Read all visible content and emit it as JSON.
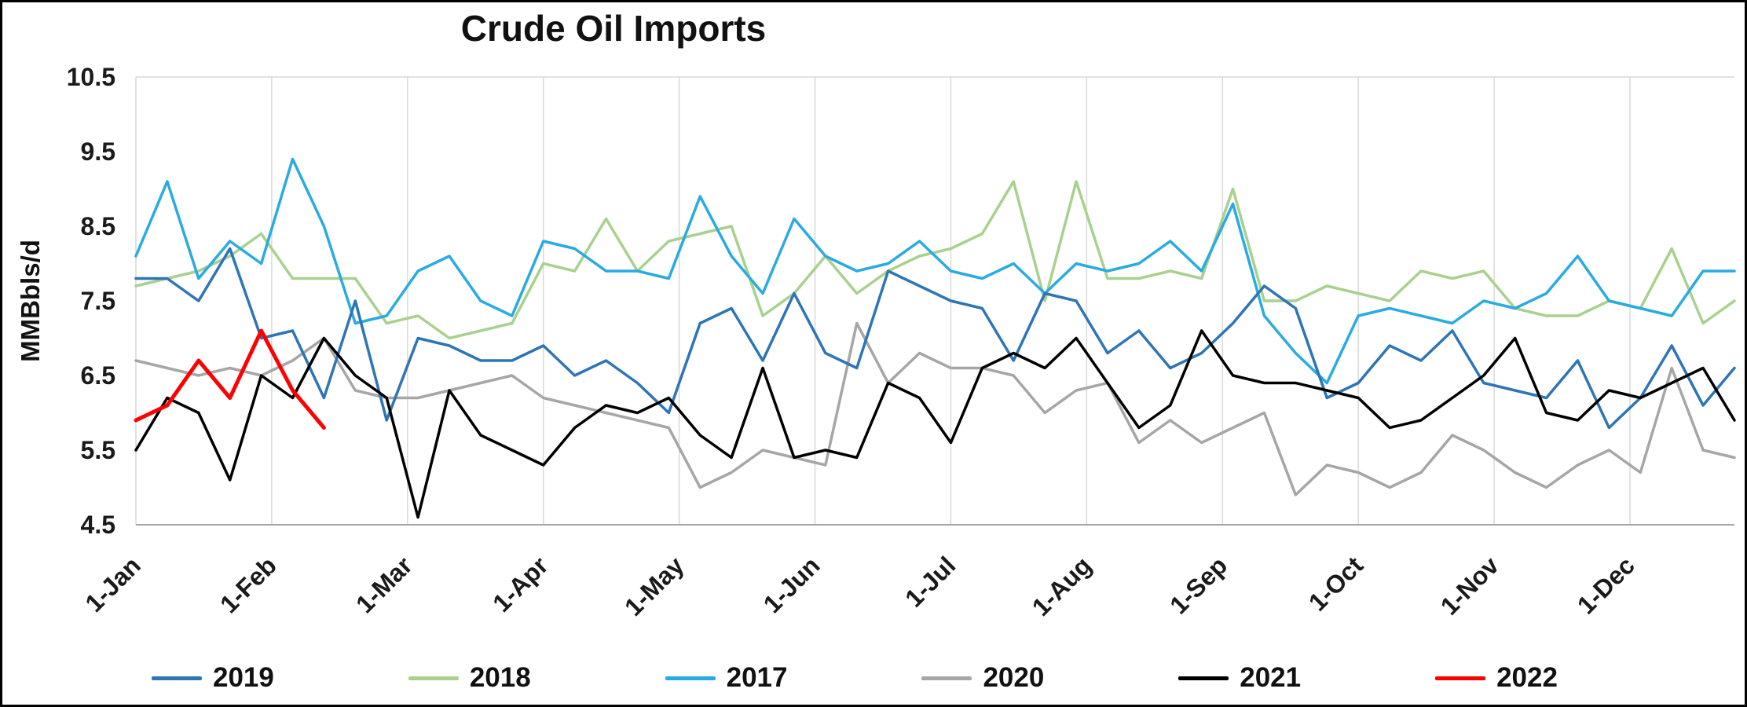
{
  "chart_data": {
    "type": "line",
    "title": "Crude Oil Imports",
    "xlabel": "",
    "ylabel": "MMBbls/d",
    "ylim": [
      4.5,
      10.5
    ],
    "y_tick_step": 1.0,
    "y_tick_labels": [
      "4.5",
      "5.5",
      "6.5",
      "7.5",
      "8.5",
      "9.5",
      "10.5"
    ],
    "x_tick_labels": [
      "1-Jan",
      "1-Feb",
      "1-Mar",
      "1-Apr",
      "1-May",
      "1-Jun",
      "1-Jul",
      "1-Aug",
      "1-Sep",
      "1-Oct",
      "1-Nov",
      "1-Dec"
    ],
    "x_unit": "weekly",
    "weeks_per_year": 52,
    "grid": "vertical-monthly",
    "grid_color": "#d9d9d9",
    "axis_color": "#a6a6a6",
    "legend_position": "bottom",
    "series": [
      {
        "name": "2019",
        "color": "#2e75b6",
        "values": [
          7.8,
          7.8,
          7.5,
          8.2,
          7.0,
          7.1,
          6.2,
          7.5,
          5.9,
          7.0,
          6.9,
          6.7,
          6.7,
          6.9,
          6.5,
          6.7,
          6.4,
          6.0,
          7.2,
          7.4,
          6.7,
          7.6,
          6.8,
          6.6,
          7.9,
          7.7,
          7.5,
          7.4,
          6.7,
          7.6,
          7.5,
          6.8,
          7.1,
          6.6,
          6.8,
          7.2,
          7.7,
          7.4,
          6.2,
          6.4,
          6.9,
          6.7,
          7.1,
          6.4,
          6.3,
          6.2,
          6.7,
          5.8,
          6.2,
          6.9,
          6.1,
          6.6
        ]
      },
      {
        "name": "2018",
        "color": "#a9d18e",
        "values": [
          7.7,
          7.8,
          7.9,
          8.1,
          8.4,
          7.8,
          7.8,
          7.8,
          7.2,
          7.3,
          7.0,
          7.1,
          7.2,
          8.0,
          7.9,
          8.6,
          7.9,
          8.3,
          8.4,
          8.5,
          7.3,
          7.6,
          8.1,
          7.6,
          7.9,
          8.1,
          8.2,
          8.4,
          9.1,
          7.5,
          9.1,
          7.8,
          7.8,
          7.9,
          7.8,
          9.0,
          7.5,
          7.5,
          7.7,
          7.6,
          7.5,
          7.9,
          7.8,
          7.9,
          7.4,
          7.3,
          7.3,
          7.5,
          7.4,
          8.2,
          7.2,
          7.5
        ]
      },
      {
        "name": "2017",
        "color": "#29abe2",
        "values": [
          8.1,
          9.1,
          7.8,
          8.3,
          8.0,
          9.4,
          8.5,
          7.2,
          7.3,
          7.9,
          8.1,
          7.5,
          7.3,
          8.3,
          8.2,
          7.9,
          7.9,
          7.8,
          8.9,
          8.1,
          7.6,
          8.6,
          8.1,
          7.9,
          8.0,
          8.3,
          7.9,
          7.8,
          8.0,
          7.6,
          8.0,
          7.9,
          8.0,
          8.3,
          7.9,
          8.8,
          7.3,
          6.8,
          6.4,
          7.3,
          7.4,
          7.3,
          7.2,
          7.5,
          7.4,
          7.6,
          8.1,
          7.5,
          7.4,
          7.3,
          7.9,
          7.9
        ]
      },
      {
        "name": "2020",
        "color": "#a6a6a6",
        "values": [
          6.7,
          6.6,
          6.5,
          6.6,
          6.5,
          6.7,
          7.0,
          6.3,
          6.2,
          6.2,
          6.3,
          6.4,
          6.5,
          6.2,
          6.1,
          6.0,
          5.9,
          5.8,
          5.0,
          5.2,
          5.5,
          5.4,
          5.3,
          7.2,
          6.4,
          6.8,
          6.6,
          6.6,
          6.5,
          6.0,
          6.3,
          6.4,
          5.6,
          5.9,
          5.6,
          5.8,
          6.0,
          4.9,
          5.3,
          5.2,
          5.0,
          5.2,
          5.7,
          5.5,
          5.2,
          5.0,
          5.3,
          5.5,
          5.2,
          6.6,
          5.5,
          5.4
        ]
      },
      {
        "name": "2021",
        "color": "#000000",
        "values": [
          5.5,
          6.2,
          6.0,
          5.1,
          6.5,
          6.2,
          7.0,
          6.5,
          6.2,
          4.6,
          6.3,
          5.7,
          5.5,
          5.3,
          5.8,
          6.1,
          6.0,
          6.2,
          5.7,
          5.4,
          6.6,
          5.4,
          5.5,
          5.4,
          6.4,
          6.2,
          5.6,
          6.6,
          6.8,
          6.6,
          7.0,
          6.4,
          5.8,
          6.1,
          7.1,
          6.5,
          6.4,
          6.4,
          6.3,
          6.2,
          5.8,
          5.9,
          6.2,
          6.5,
          7.0,
          6.0,
          5.9,
          6.3,
          6.2,
          6.4,
          6.6,
          5.9
        ]
      },
      {
        "name": "2022",
        "color": "#ff0000",
        "values": [
          5.9,
          6.1,
          6.7,
          6.2,
          7.1,
          6.3,
          5.8
        ]
      }
    ]
  }
}
